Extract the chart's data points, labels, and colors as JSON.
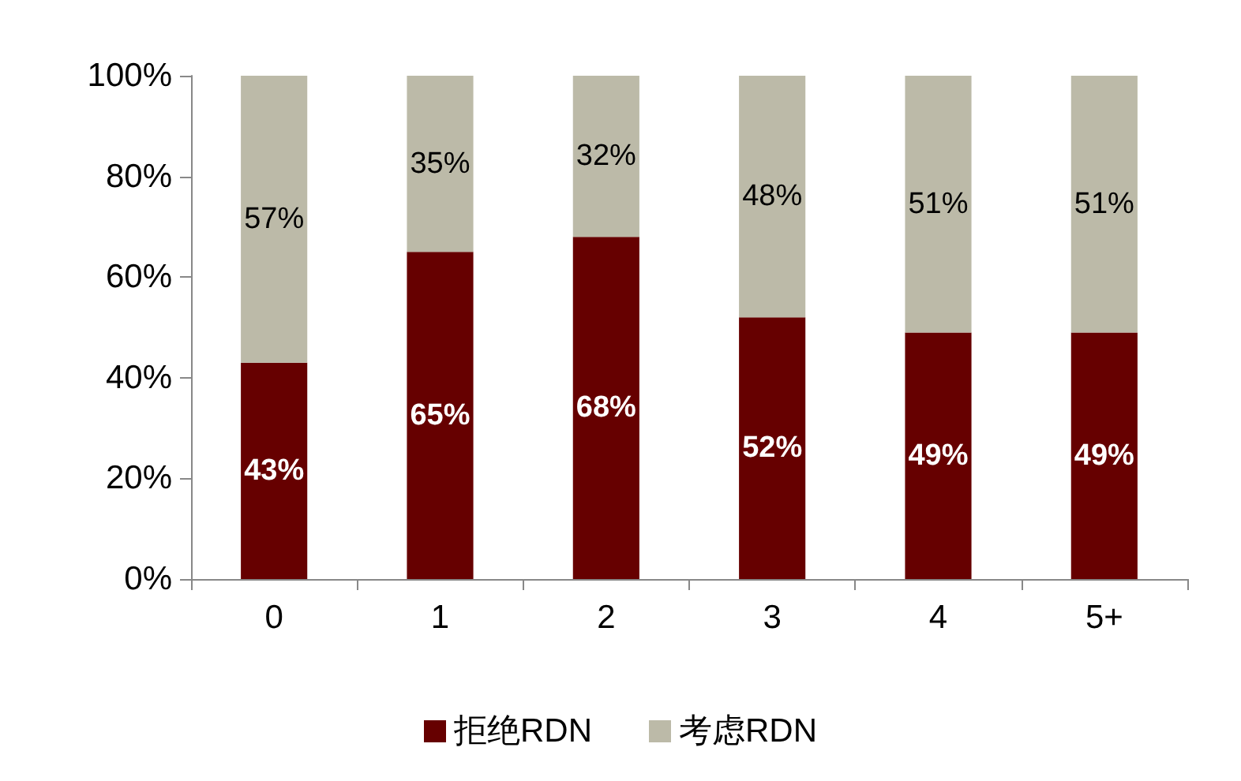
{
  "chart_data": {
    "type": "bar",
    "stacked": true,
    "categories": [
      "0",
      "1",
      "2",
      "3",
      "4",
      "5+"
    ],
    "series": [
      {
        "name": "拒绝RDN",
        "color": "#660000",
        "values": [
          43,
          65,
          68,
          52,
          49,
          49
        ],
        "value_labels": [
          "43%",
          "65%",
          "68%",
          "52%",
          "49%",
          "49%"
        ]
      },
      {
        "name": "考虑RDN",
        "color": "#bcbaa8",
        "values": [
          57,
          35,
          32,
          48,
          51,
          51
        ],
        "value_labels": [
          "57%",
          "35%",
          "32%",
          "48%",
          "51%",
          "51%"
        ]
      }
    ],
    "ylim": [
      0,
      100
    ],
    "yticks": [
      {
        "value": 0,
        "label": "0%"
      },
      {
        "value": 20,
        "label": "20%"
      },
      {
        "value": 40,
        "label": "40%"
      },
      {
        "value": 60,
        "label": "60%"
      },
      {
        "value": 80,
        "label": "80%"
      },
      {
        "value": 100,
        "label": "100%"
      }
    ],
    "grid": false,
    "legend": "bottom"
  }
}
